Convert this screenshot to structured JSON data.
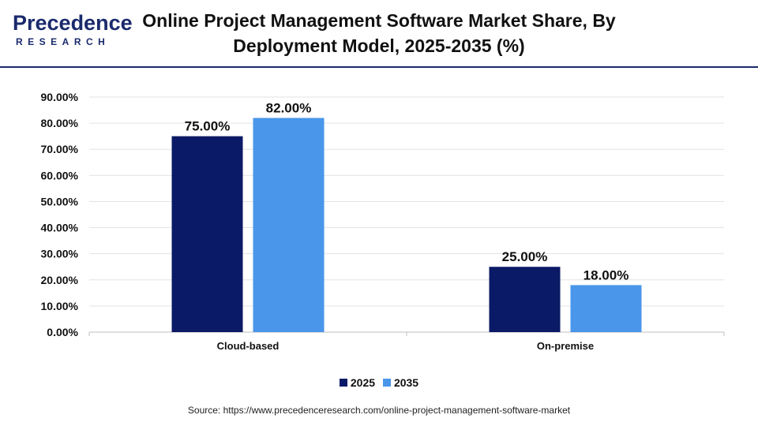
{
  "header": {
    "logo_main": "Precedence",
    "logo_sub": "RESEARCH",
    "title_line1": "Online Project Management Software Market Share, By",
    "title_line2": "Deployment Model, 2025-2035 (%)"
  },
  "colors": {
    "series_2025": "#0b1a66",
    "series_2035": "#4a96ea",
    "brand": "#1a2a6c"
  },
  "chart_data": {
    "type": "bar",
    "categories": [
      "Cloud-based",
      "On-premise"
    ],
    "series": [
      {
        "name": "2025",
        "values": [
          75.0,
          25.0
        ],
        "labels": [
          "75.00%",
          "25.00%"
        ]
      },
      {
        "name": "2035",
        "values": [
          82.0,
          18.0
        ],
        "labels": [
          "82.00%",
          "18.00%"
        ]
      }
    ],
    "ylim": [
      0,
      90
    ],
    "y_ticks": [
      "0.00%",
      "10.00%",
      "20.00%",
      "30.00%",
      "40.00%",
      "50.00%",
      "60.00%",
      "70.00%",
      "80.00%",
      "90.00%"
    ],
    "grid": true,
    "legend": "bottom"
  },
  "legend": {
    "items": [
      "2025",
      "2035"
    ]
  },
  "source": "Source: https://www.precedenceresearch.com/online-project-management-software-market"
}
